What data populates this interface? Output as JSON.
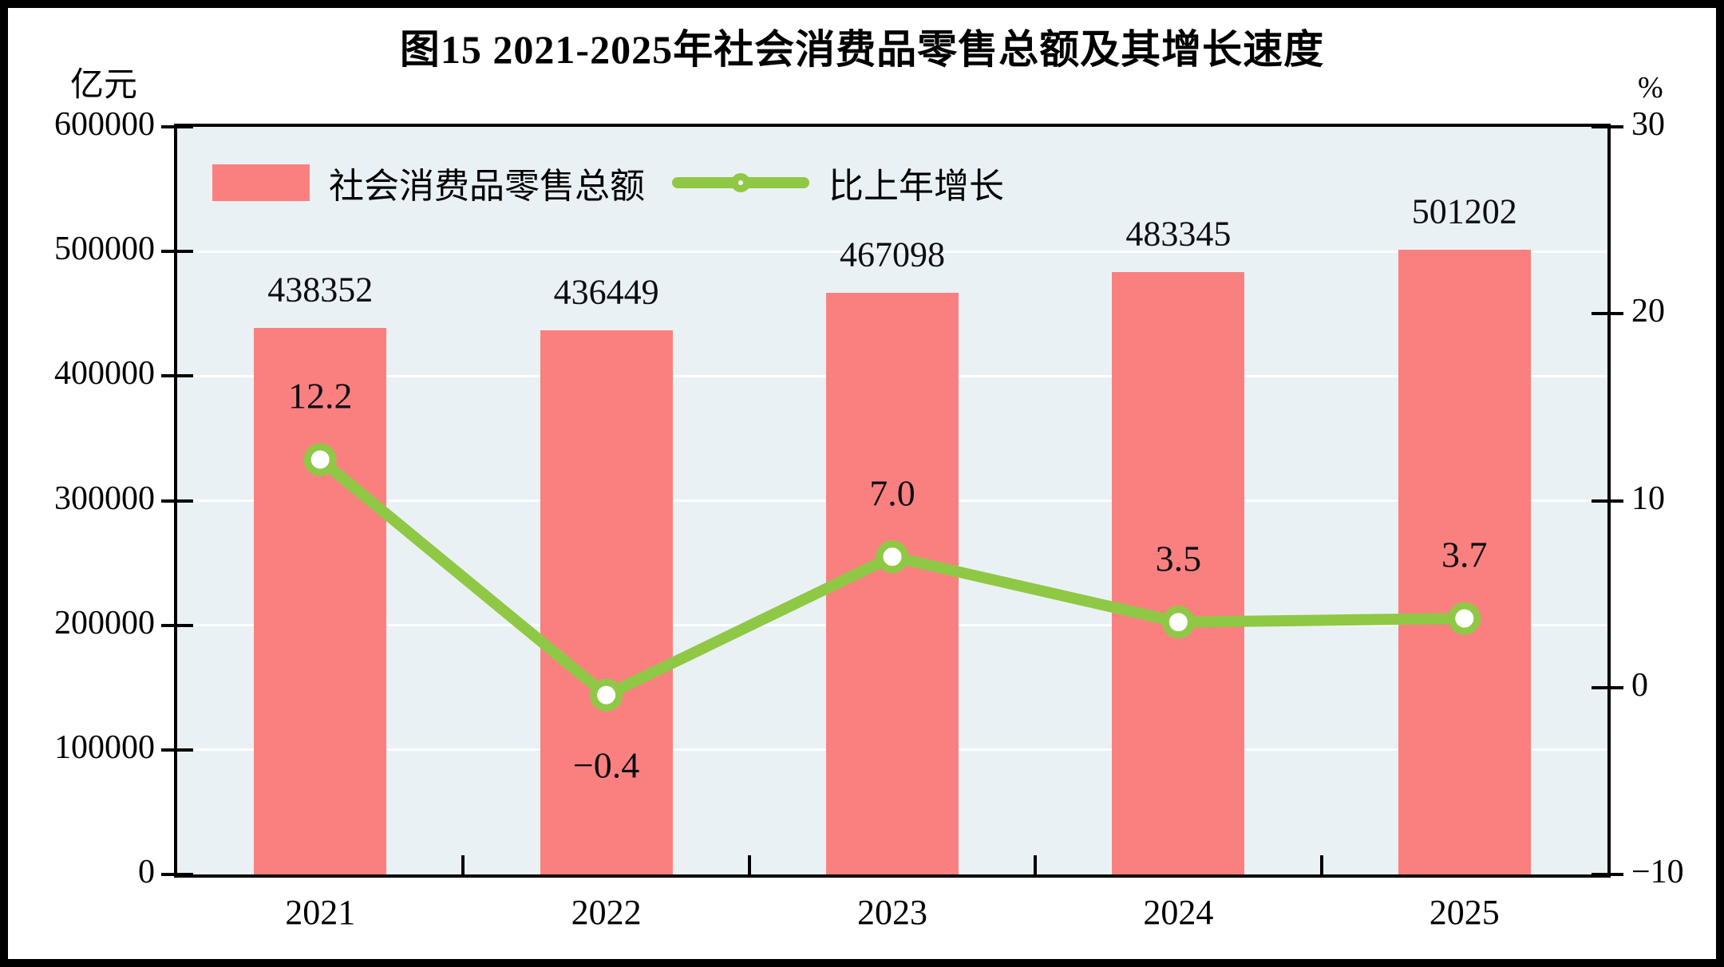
{
  "page": {
    "title": "图15  2021-2025年社会消费品零售总额及其增长速度"
  },
  "chart_data": {
    "type": "combo-bar-line",
    "title": "图15  2021-2025年社会消费品零售总额及其增长速度",
    "categories": [
      "2021",
      "2022",
      "2023",
      "2024",
      "2025"
    ],
    "series": [
      {
        "name": "社会消费品零售总额",
        "type": "bar",
        "axis": "left",
        "color": "#FA8080",
        "values": [
          438352,
          436449,
          467098,
          483345,
          501202
        ],
        "data_labels": [
          "438352",
          "436449",
          "467098",
          "483345",
          "501202"
        ]
      },
      {
        "name": "比上年增长",
        "type": "line",
        "axis": "right",
        "color": "#8FC845",
        "marker": "open-circle-white",
        "values": [
          12.2,
          -0.4,
          7.0,
          3.5,
          3.7
        ],
        "data_labels": [
          "12.2",
          "−0.4",
          "7.0",
          "3.5",
          "3.7"
        ],
        "label_below": [
          false,
          true,
          false,
          false,
          false
        ]
      }
    ],
    "left_axis": {
      "unit": "亿元",
      "min": 0,
      "max": 600000,
      "step": 100000,
      "tick_labels": [
        "600000",
        "500000",
        "400000",
        "300000",
        "200000",
        "100000",
        "0"
      ]
    },
    "right_axis": {
      "unit": "%",
      "min": -10,
      "max": 30,
      "step": 10,
      "tick_labels": [
        "30",
        "20",
        "10",
        "0",
        "−10"
      ]
    },
    "legend": {
      "position": "top-left-inside",
      "entries": [
        "社会消费品零售总额",
        "比上年增长"
      ]
    },
    "grid": {
      "horizontal": true,
      "color": "#FFFFFF"
    },
    "plot_background": "#EAF1F5"
  }
}
